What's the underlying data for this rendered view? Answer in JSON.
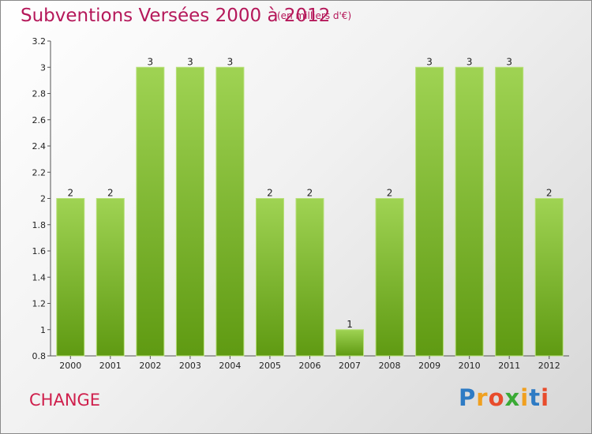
{
  "title": "Subventions Versées 2000 à 2012",
  "unit_note": "(en milliers d'€)",
  "commune": "CHANGE",
  "logo": {
    "text": "Proxiti",
    "letters": [
      "P",
      "r",
      "o",
      "x",
      "i",
      "t",
      "i"
    ],
    "colors": [
      "#2e7bc4",
      "#f0a020",
      "#e84c2c",
      "#3aaa35",
      "#f0a020",
      "#2e7bc4",
      "#e84c2c"
    ]
  },
  "colors": {
    "title": "#b5185a",
    "bar_top": "#9fd353",
    "bar_bottom": "#5f9a12",
    "axis": "#555555"
  },
  "chart_data": {
    "type": "bar",
    "categories": [
      "2000",
      "2001",
      "2002",
      "2003",
      "2004",
      "2005",
      "2006",
      "2007",
      "2008",
      "2009",
      "2010",
      "2011",
      "2012"
    ],
    "values": [
      2,
      2,
      3,
      3,
      3,
      2,
      2,
      1,
      2,
      3,
      3,
      3,
      2
    ],
    "data_labels": [
      "2",
      "2",
      "3",
      "3",
      "3",
      "2",
      "2",
      "1",
      "2",
      "3",
      "3",
      "3",
      "2"
    ],
    "title": "Subventions Versées 2000 à 2012",
    "ylim": [
      0.8,
      3.2
    ],
    "yticks": [
      0.8,
      1,
      1.2,
      1.4,
      1.6,
      1.8,
      2,
      2.2,
      2.4,
      2.6,
      2.8,
      3,
      3.2
    ],
    "ytick_labels": [
      "0.8",
      "1",
      "1.2",
      "1.4",
      "1.6",
      "1.8",
      "2",
      "2.2",
      "2.4",
      "2.6",
      "2.8",
      "3",
      "3.2"
    ],
    "grid": false,
    "legend": "none"
  }
}
